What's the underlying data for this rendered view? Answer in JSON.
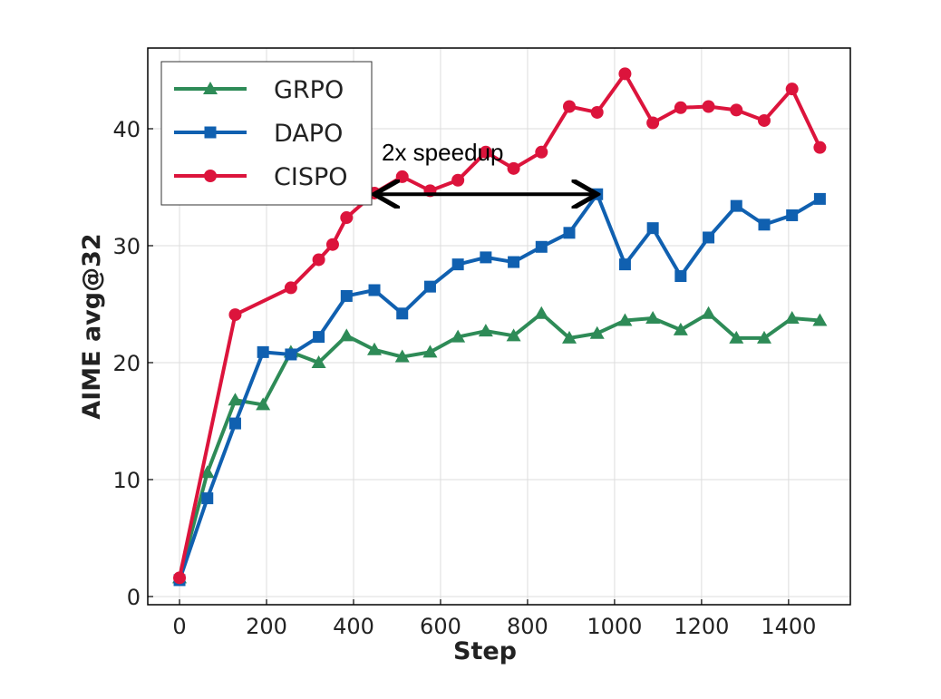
{
  "chart_data": {
    "type": "line",
    "xlabel": "Step",
    "ylabel": "AIME avg@32",
    "xlim": [
      -73,
      1542
    ],
    "ylim": [
      -0.7,
      46.9
    ],
    "xticks": [
      0,
      200,
      400,
      600,
      800,
      1000,
      1200,
      1400
    ],
    "yticks": [
      0,
      10,
      20,
      30,
      40
    ],
    "grid": true,
    "legend_placement": "top-left",
    "series": [
      {
        "name": "GRPO",
        "color": "#2e8b57",
        "marker": "triangle",
        "x": [
          0,
          64,
          128,
          192,
          256,
          320,
          384,
          448,
          512,
          576,
          640,
          704,
          768,
          832,
          896,
          960,
          1024,
          1088,
          1152,
          1216,
          1280,
          1344,
          1408,
          1472
        ],
        "y": [
          1.6,
          10.6,
          16.8,
          16.4,
          20.9,
          20.0,
          22.3,
          21.1,
          20.5,
          20.9,
          22.2,
          22.7,
          22.3,
          24.2,
          22.1,
          22.5,
          23.6,
          23.8,
          22.8,
          24.2,
          22.1,
          22.1,
          23.8,
          23.6
        ]
      },
      {
        "name": "DAPO",
        "color": "#1060b0",
        "marker": "square",
        "x": [
          0,
          64,
          128,
          192,
          256,
          320,
          384,
          448,
          512,
          576,
          640,
          704,
          768,
          832,
          896,
          960,
          1024,
          1088,
          1152,
          1216,
          1280,
          1344,
          1408,
          1472
        ],
        "y": [
          1.4,
          8.4,
          14.8,
          20.9,
          20.7,
          22.2,
          25.7,
          26.2,
          24.2,
          26.5,
          28.4,
          29.0,
          28.6,
          29.9,
          31.1,
          34.4,
          28.4,
          31.5,
          27.4,
          30.7,
          33.4,
          31.8,
          32.6,
          34.0
        ]
      },
      {
        "name": "CISPO",
        "color": "#dc143c",
        "marker": "circle",
        "x": [
          0,
          128,
          256,
          320,
          352,
          384,
          448,
          512,
          576,
          640,
          704,
          768,
          832,
          896,
          960,
          1024,
          1088,
          1152,
          1216,
          1280,
          1344,
          1408,
          1472
        ],
        "y": [
          1.6,
          24.1,
          26.4,
          28.8,
          30.1,
          32.4,
          34.5,
          35.9,
          34.7,
          35.6,
          38.0,
          36.6,
          38.0,
          41.9,
          41.4,
          44.7,
          40.5,
          41.8,
          41.9,
          41.6,
          40.7,
          43.4,
          38.4
        ]
      }
    ],
    "annotation": {
      "text": "2x speedup",
      "arrow_from": [
        448,
        34.4
      ],
      "arrow_to": [
        960,
        34.4
      ]
    }
  }
}
